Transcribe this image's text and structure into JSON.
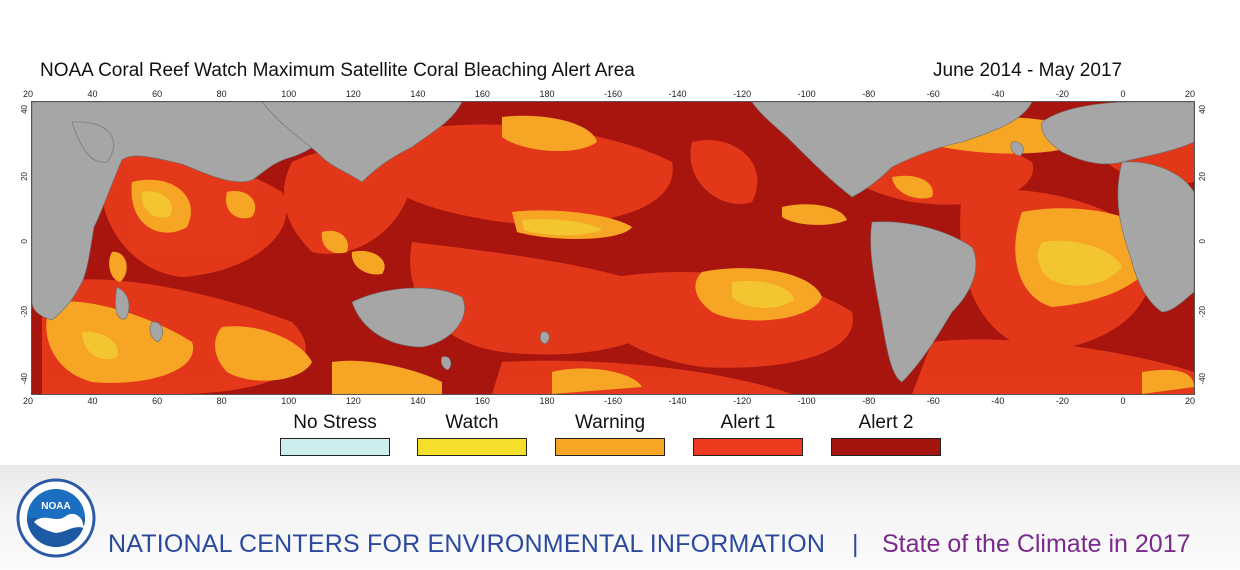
{
  "title": "NOAA Coral Reef Watch Maximum Satellite Coral Bleaching Alert Area",
  "period": "June 2014 - May 2017",
  "lon_ticks": [
    "20",
    "40",
    "60",
    "80",
    "100",
    "120",
    "140",
    "160",
    "180",
    "-160",
    "-140",
    "-120",
    "-100",
    "-80",
    "-60",
    "-40",
    "-20",
    "0",
    "20"
  ],
  "lat_ticks": [
    "40",
    "20",
    "0",
    "-20",
    "-40"
  ],
  "legend": [
    {
      "label": "No Stress",
      "color": "#cdeeee"
    },
    {
      "label": "Watch",
      "color": "#f5df2a"
    },
    {
      "label": "Warning",
      "color": "#f6a524"
    },
    {
      "label": "Alert  1",
      "color": "#ee3a1f"
    },
    {
      "label": "Alert  2",
      "color": "#a5150f"
    }
  ],
  "colors": {
    "land": "#a6a6a6",
    "alert2": "#a8150f",
    "alert1": "#e63a1a",
    "warning": "#f6a524",
    "watch": "#f5df2a"
  },
  "footer": {
    "logo_text": "NOAA",
    "org": "NATIONAL CENTERS FOR ENVIRONMENTAL INFORMATION",
    "separator": "|",
    "report": "State of the Climate in 2017"
  }
}
